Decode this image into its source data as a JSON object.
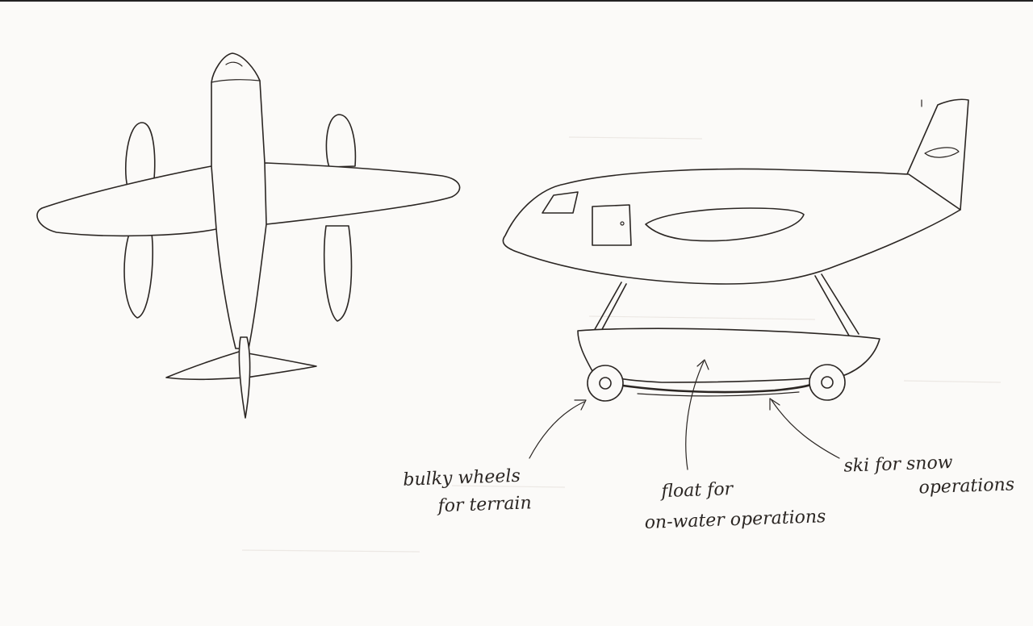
{
  "annotations": {
    "wheels": {
      "line1": "bulky wheels",
      "line2": "for terrain"
    },
    "float": {
      "line1": "float for",
      "line2": "on-water operations"
    },
    "ski": {
      "line1": "ski for snow",
      "line2": "operations"
    }
  }
}
